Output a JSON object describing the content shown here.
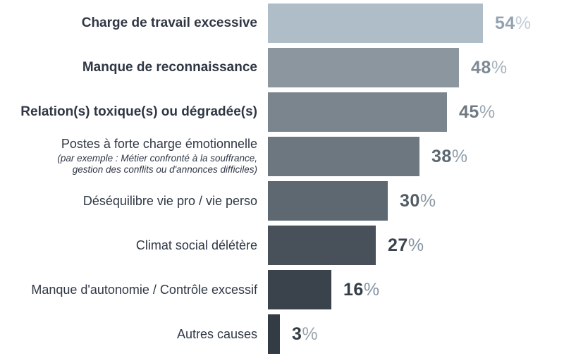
{
  "chart_data": {
    "type": "bar",
    "orientation": "horizontal",
    "title": "",
    "unit": "%",
    "xlim": [
      0,
      60
    ],
    "grid": false,
    "legend": false,
    "value_label_position": "right-of-bar",
    "bars": [
      {
        "label": "Charge de travail excessive",
        "value": 54,
        "bar_color": "#aebdc7",
        "value_color": "#93a3b0",
        "unit_color": "#c0ccd5"
      },
      {
        "label": "Manque de reconnaissance",
        "value": 48,
        "bar_color": "#8b969e",
        "value_color": "#7d8a94",
        "unit_color": "#a7b3bd"
      },
      {
        "label": "Relation(s) toxique(s) ou dégradée(s)",
        "value": 45,
        "bar_color": "#7a858d",
        "value_color": "#6e7a84",
        "unit_color": "#9ba8b2"
      },
      {
        "label": "Postes à forte charge émotionnelle",
        "caption_lines": [
          "(par exemple : Métier confronté à la souffrance,",
          "gestion des conflits ou d'annonces difficiles)"
        ],
        "value": 38,
        "bar_color": "#6d7780",
        "value_color": "#5d6972",
        "unit_color": "#909da8"
      },
      {
        "label": "Déséquilibre vie pro / vie perso",
        "value": 30,
        "bar_color": "#5d6870",
        "value_color": "#525d66",
        "unit_color": "#8a97a3"
      },
      {
        "label": "Climat social délétère",
        "value": 27,
        "bar_color": "#485059",
        "value_color": "#39434e",
        "unit_color": "#8695a4"
      },
      {
        "label": "Manque d'autonomie / Contrôle excessif",
        "value": 16,
        "bar_color": "#3a424c",
        "value_color": "#343d47",
        "unit_color": "#8593a3"
      },
      {
        "label": "Autres causes",
        "value": 3,
        "bar_color": "#333b45",
        "value_color": "#333c46",
        "unit_color": "#9aa4ac"
      }
    ]
  }
}
